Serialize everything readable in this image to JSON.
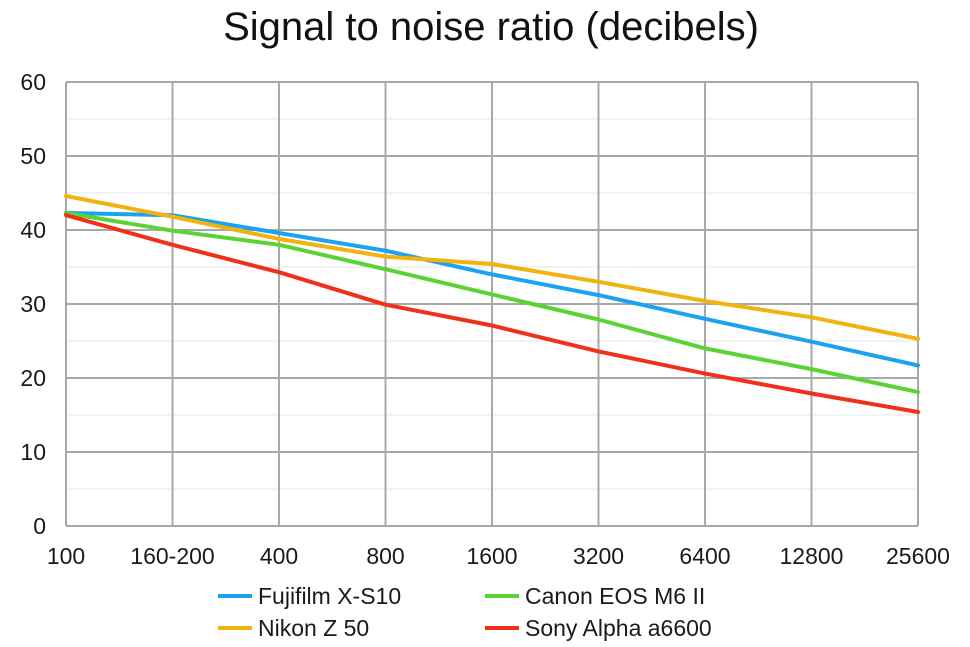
{
  "chart_data": {
    "type": "line",
    "title": "Signal to noise ratio (decibels)",
    "xlabel": "",
    "ylabel": "",
    "x": [
      "100",
      "160-200",
      "400",
      "800",
      "1600",
      "3200",
      "6400",
      "12800",
      "25600"
    ],
    "ylim": [
      0,
      60
    ],
    "yticks": [
      0,
      10,
      20,
      30,
      40,
      50,
      60
    ],
    "grid": true,
    "legend_position": "bottom",
    "series": [
      {
        "name": "Fujifilm X-S10",
        "color": "#1aa3f0",
        "values": [
          42.3,
          42.0,
          39.6,
          37.2,
          34.0,
          31.2,
          28.0,
          24.9,
          21.7
        ]
      },
      {
        "name": "Nikon Z 50",
        "color": "#f2b20f",
        "values": [
          44.6,
          41.8,
          38.8,
          36.4,
          35.4,
          33.0,
          30.4,
          28.2,
          25.3
        ]
      },
      {
        "name": "Canon EOS M6 II",
        "color": "#5bd336",
        "values": [
          42.3,
          39.9,
          38.0,
          34.7,
          31.3,
          27.9,
          24.0,
          21.2,
          18.1
        ]
      },
      {
        "name": "Sony Alpha a6600",
        "color": "#f0301a",
        "values": [
          42.0,
          38.0,
          34.3,
          29.9,
          27.1,
          23.6,
          20.6,
          17.9,
          15.4
        ]
      }
    ]
  }
}
